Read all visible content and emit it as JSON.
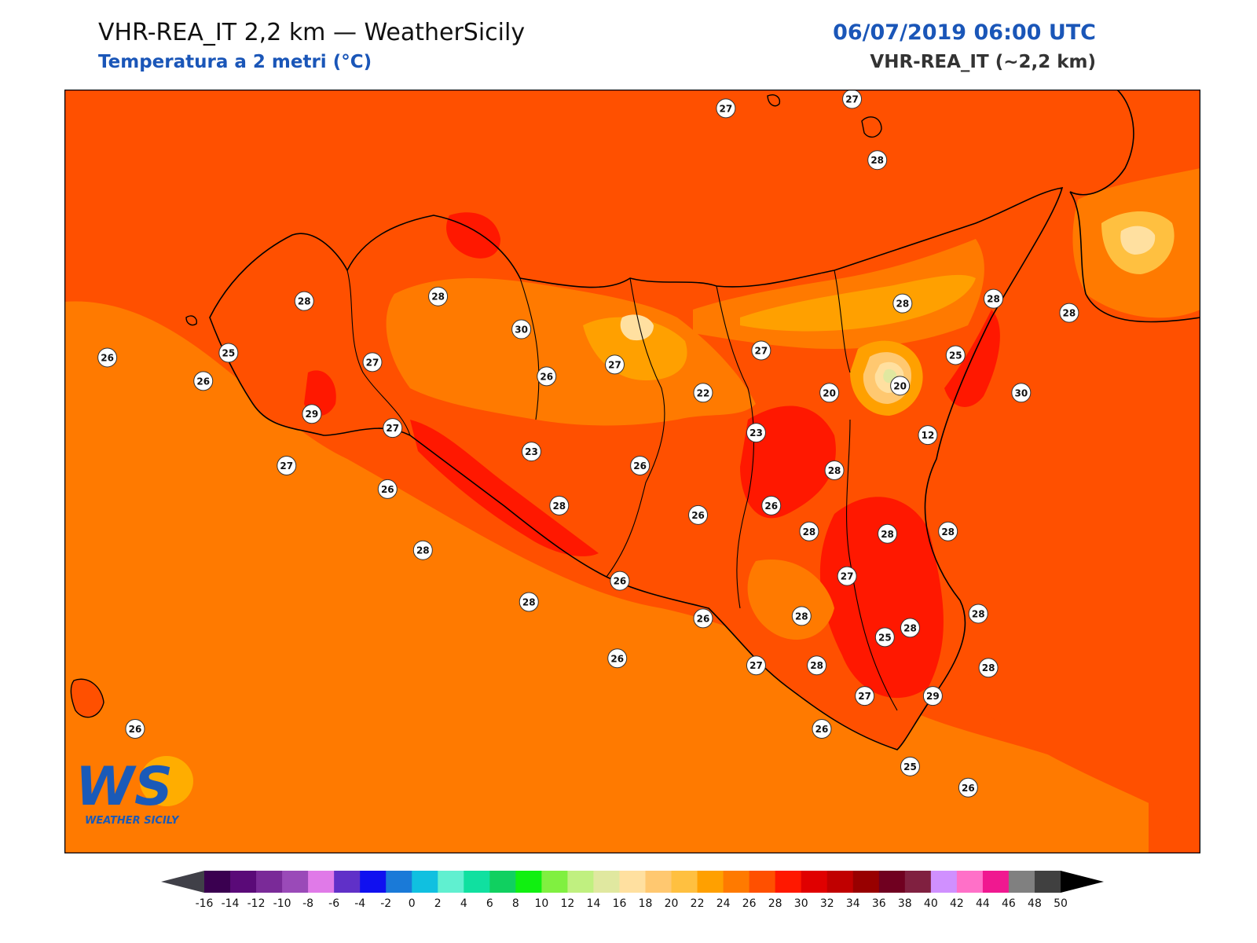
{
  "header": {
    "title": "VHR-REA_IT 2,2 km — WeatherSicily",
    "subtitle": "Temperatura a 2 metri (°C)",
    "datetime": "06/07/2019 06:00 UTC",
    "model": "VHR-REA_IT (~2,2 km)"
  },
  "logo": {
    "text": "WS",
    "caption": "WEATHER SICILY"
  },
  "colorbar": {
    "ticks": [
      "-16",
      "-14",
      "-12",
      "-10",
      "-8",
      "-6",
      "-4",
      "-2",
      "0",
      "2",
      "4",
      "6",
      "8",
      "10",
      "12",
      "14",
      "16",
      "18",
      "20",
      "22",
      "24",
      "26",
      "28",
      "30",
      "32",
      "34",
      "36",
      "38",
      "40",
      "42",
      "44",
      "46",
      "48",
      "50"
    ],
    "colors": [
      "#3a0050",
      "#5a0a78",
      "#7a2a98",
      "#9a4ab8",
      "#e07ae8",
      "#6030c8",
      "#1010f0",
      "#1a7ad8",
      "#10c0e0",
      "#60f0d0",
      "#10e0a0",
      "#10d060",
      "#10f010",
      "#80f040",
      "#c0f080",
      "#e0e8a0",
      "#ffe0a0",
      "#ffc870",
      "#ffc040",
      "#ffa000",
      "#ff7a00",
      "#ff5000",
      "#ff1800",
      "#e00000",
      "#c00000",
      "#980000",
      "#700020",
      "#802040",
      "#d090ff",
      "#ff70c8",
      "#f01890",
      "#808080",
      "#404040"
    ],
    "arrow_low": "#404048",
    "arrow_high": "#000000"
  },
  "stations": [
    {
      "label": "27",
      "lon": 14.2,
      "lat": 39.05
    },
    {
      "label": "27",
      "lon": 14.7,
      "lat": 39.09
    },
    {
      "label": "28",
      "lon": 14.8,
      "lat": 38.83
    },
    {
      "label": "28",
      "lon": 12.53,
      "lat": 38.23
    },
    {
      "label": "28",
      "lon": 13.06,
      "lat": 38.25
    },
    {
      "label": "30",
      "lon": 13.39,
      "lat": 38.11
    },
    {
      "label": "26",
      "lon": 11.75,
      "lat": 37.99
    },
    {
      "label": "25",
      "lon": 12.23,
      "lat": 38.01
    },
    {
      "label": "26",
      "lon": 12.13,
      "lat": 37.89
    },
    {
      "label": "27",
      "lon": 12.8,
      "lat": 37.97
    },
    {
      "label": "26",
      "lon": 13.49,
      "lat": 37.91
    },
    {
      "label": "27",
      "lon": 13.76,
      "lat": 37.96
    },
    {
      "label": "22",
      "lon": 14.11,
      "lat": 37.84
    },
    {
      "label": "27",
      "lon": 14.34,
      "lat": 38.02
    },
    {
      "label": "28",
      "lon": 14.9,
      "lat": 38.22
    },
    {
      "label": "28",
      "lon": 15.26,
      "lat": 38.24
    },
    {
      "label": "28",
      "lon": 15.56,
      "lat": 38.18
    },
    {
      "label": "25",
      "lon": 15.11,
      "lat": 38.0
    },
    {
      "label": "20",
      "lon": 14.61,
      "lat": 37.84
    },
    {
      "label": "20",
      "lon": 14.89,
      "lat": 37.87
    },
    {
      "label": "30",
      "lon": 15.37,
      "lat": 37.84
    },
    {
      "label": "12",
      "lon": 15.0,
      "lat": 37.66
    },
    {
      "label": "29",
      "lon": 12.56,
      "lat": 37.75
    },
    {
      "label": "27",
      "lon": 12.88,
      "lat": 37.69
    },
    {
      "label": "23",
      "lon": 13.43,
      "lat": 37.59
    },
    {
      "label": "23",
      "lon": 14.32,
      "lat": 37.67
    },
    {
      "label": "26",
      "lon": 13.86,
      "lat": 37.53
    },
    {
      "label": "28",
      "lon": 14.63,
      "lat": 37.51
    },
    {
      "label": "27",
      "lon": 12.46,
      "lat": 37.53
    },
    {
      "label": "26",
      "lon": 12.86,
      "lat": 37.43
    },
    {
      "label": "28",
      "lon": 13.54,
      "lat": 37.36
    },
    {
      "label": "26",
      "lon": 14.09,
      "lat": 37.32
    },
    {
      "label": "26",
      "lon": 14.38,
      "lat": 37.36
    },
    {
      "label": "28",
      "lon": 14.53,
      "lat": 37.25
    },
    {
      "label": "28",
      "lon": 14.84,
      "lat": 37.24
    },
    {
      "label": "28",
      "lon": 15.08,
      "lat": 37.25
    },
    {
      "label": "28",
      "lon": 13.0,
      "lat": 37.17
    },
    {
      "label": "27",
      "lon": 14.68,
      "lat": 37.06
    },
    {
      "label": "26",
      "lon": 13.78,
      "lat": 37.04
    },
    {
      "label": "28",
      "lon": 13.42,
      "lat": 36.95
    },
    {
      "label": "28",
      "lon": 14.5,
      "lat": 36.89
    },
    {
      "label": "28",
      "lon": 15.2,
      "lat": 36.9
    },
    {
      "label": "26",
      "lon": 14.11,
      "lat": 36.88
    },
    {
      "label": "25",
      "lon": 14.83,
      "lat": 36.8
    },
    {
      "label": "28",
      "lon": 14.93,
      "lat": 36.84
    },
    {
      "label": "26",
      "lon": 13.77,
      "lat": 36.71
    },
    {
      "label": "27",
      "lon": 14.32,
      "lat": 36.68
    },
    {
      "label": "28",
      "lon": 14.56,
      "lat": 36.68
    },
    {
      "label": "28",
      "lon": 15.24,
      "lat": 36.67
    },
    {
      "label": "27",
      "lon": 14.75,
      "lat": 36.55
    },
    {
      "label": "29",
      "lon": 15.02,
      "lat": 36.55
    },
    {
      "label": "26",
      "lon": 14.58,
      "lat": 36.41
    },
    {
      "label": "26",
      "lon": 11.86,
      "lat": 36.41
    },
    {
      "label": "25",
      "lon": 14.93,
      "lat": 36.25
    },
    {
      "label": "26",
      "lon": 15.16,
      "lat": 36.16
    }
  ]
}
